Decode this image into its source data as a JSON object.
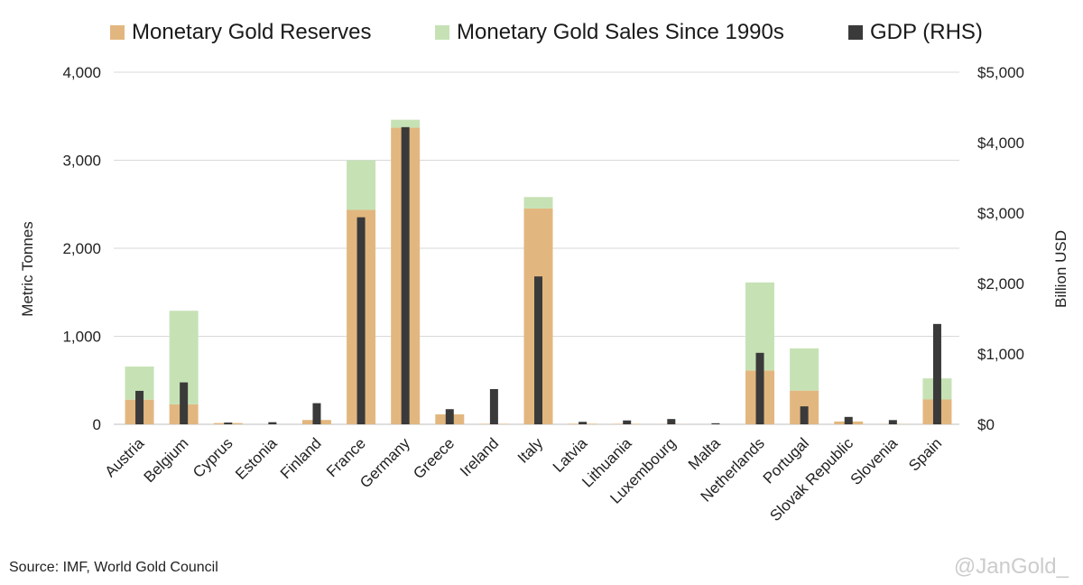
{
  "chart_data": {
    "type": "bar",
    "title": "",
    "ylabel": "Metric Tonnes",
    "y2label": "Billion USD",
    "ylim": [
      0,
      4000
    ],
    "y2lim": [
      0,
      5000
    ],
    "yticks": [
      0,
      1000,
      2000,
      3000,
      4000
    ],
    "ytick_labels": [
      "0",
      "1,000",
      "2,000",
      "3,000",
      "4,000"
    ],
    "y2ticks": [
      0,
      1000,
      2000,
      3000,
      4000,
      5000
    ],
    "y2tick_labels": [
      "$0",
      "$1,000",
      "$2,000",
      "$3,000",
      "$4,000",
      "$5,000"
    ],
    "grid": true,
    "categories": [
      "Austria",
      "Belgium",
      "Cyprus",
      "Estonia",
      "Finland",
      "France",
      "Germany",
      "Greece",
      "Ireland",
      "Italy",
      "Latvia",
      "Lithuania",
      "Luxembourg",
      "Malta",
      "Netherlands",
      "Portugal",
      "Slovak Republic",
      "Slovenia",
      "Spain"
    ],
    "series": [
      {
        "name": "Monetary Gold Reserves",
        "axis": "left",
        "stack": "gold",
        "color": "#e2b77f",
        "values": [
          280,
          227,
          14,
          0,
          49,
          2436,
          3370,
          113,
          6,
          2452,
          7,
          6,
          2,
          0,
          612,
          383,
          32,
          3,
          282
        ]
      },
      {
        "name": "Monetary Gold Sales Since 1990s",
        "axis": "left",
        "stack": "gold",
        "color": "#c6e2b5",
        "values": [
          376,
          1063,
          0,
          0,
          0,
          564,
          90,
          0,
          0,
          130,
          0,
          0,
          0,
          0,
          1000,
          480,
          0,
          0,
          240
        ]
      },
      {
        "name": "GDP (RHS)",
        "axis": "right",
        "color": "#3a3a3a",
        "values": [
          475,
          595,
          25,
          30,
          300,
          2940,
          4220,
          215,
          500,
          2100,
          35,
          55,
          75,
          15,
          1015,
          255,
          105,
          60,
          1425
        ]
      }
    ]
  },
  "legend": {
    "reserves": "Monetary Gold Reserves",
    "sales": "Monetary Gold Sales Since 1990s",
    "gdp": "GDP (RHS)"
  },
  "axes": {
    "left_title": "Metric Tonnes",
    "right_title": "Billion USD"
  },
  "footer": {
    "source": "Source: IMF, World Gold Council",
    "watermark": "@JanGold_"
  }
}
